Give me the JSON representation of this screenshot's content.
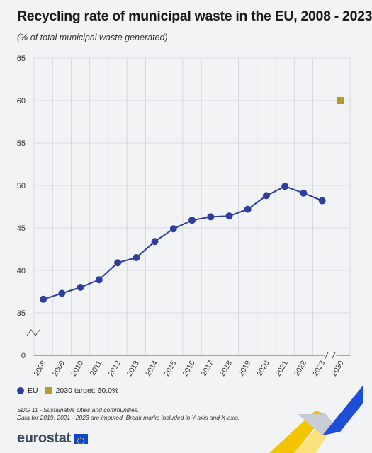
{
  "header": {
    "title": "Recycling rate of municipal waste in the EU, 2008 - 2023",
    "subtitle": "(% of total municipal waste generated)"
  },
  "legend": {
    "eu_label": "EU",
    "target_label": "2030 target: 60.0%"
  },
  "notes": {
    "line1": "SDG 11 - Sustainable cities and communities.",
    "line2": "Data for 2019, 2021 - 2023 are imputed. Break marks included in Y-axis and X-axis."
  },
  "brand": {
    "name": "eurostat"
  },
  "colors": {
    "eu": "#2e3e9e",
    "target": "#b39b2e",
    "grid": "#cfd3da"
  },
  "chart_data": {
    "type": "line",
    "title": "Recycling rate of municipal waste in the EU, 2008 - 2023",
    "ylim": [
      0,
      65
    ],
    "yticks": [
      0,
      35,
      40,
      45,
      50,
      55,
      60,
      65
    ],
    "y_axis_break": true,
    "x_axis_break": true,
    "grid": true,
    "legend_position": "bottom-left",
    "categories": [
      "2008",
      "2009",
      "2010",
      "2011",
      "2012",
      "2013",
      "2014",
      "2015",
      "2016",
      "2017",
      "2018",
      "2019",
      "2020",
      "2021",
      "2022",
      "2023",
      "2030"
    ],
    "series": [
      {
        "name": "EU",
        "x": [
          "2008",
          "2009",
          "2010",
          "2011",
          "2012",
          "2013",
          "2014",
          "2015",
          "2016",
          "2017",
          "2018",
          "2019",
          "2020",
          "2021",
          "2022",
          "2023"
        ],
        "values": [
          36.6,
          37.3,
          38.0,
          38.9,
          40.9,
          41.5,
          43.4,
          44.9,
          45.9,
          46.3,
          46.4,
          47.2,
          48.8,
          49.9,
          49.1,
          48.2
        ]
      },
      {
        "name": "2030 target: 60.0%",
        "x": [
          "2030"
        ],
        "values": [
          60.0
        ]
      }
    ]
  }
}
